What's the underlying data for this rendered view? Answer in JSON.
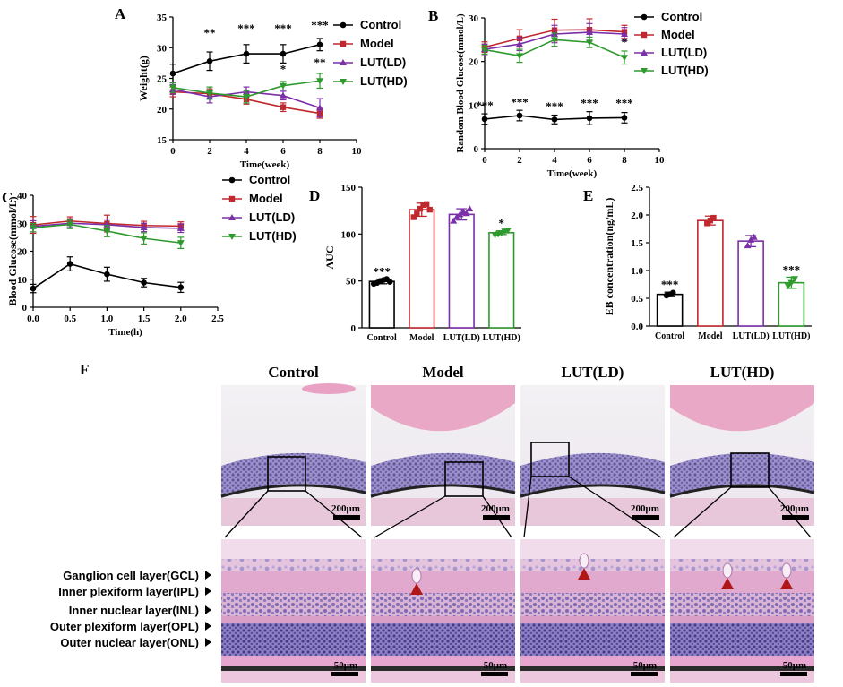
{
  "colors": {
    "control": "#000000",
    "model": "#c0282d",
    "lut_ld": "#7b2fa8",
    "lut_hd": "#2e9a2e"
  },
  "chart_data": [
    {
      "id": "A",
      "panel_label": "A",
      "type": "line",
      "xlabel": "Time(week)",
      "ylabel": "Weight(g)",
      "xlim": [
        0,
        10
      ],
      "ylim": [
        15,
        35
      ],
      "xticks": [
        "0",
        "2",
        "4",
        "6",
        "8",
        "10"
      ],
      "yticks": [
        "15",
        "20",
        "25",
        "30",
        "35"
      ],
      "x": [
        0,
        2,
        4,
        6,
        8
      ],
      "series": [
        {
          "name": "Control",
          "values": [
            25.8,
            27.8,
            29.0,
            29.0,
            30.5
          ],
          "errors": [
            1.5,
            1.5,
            1.5,
            1.5,
            1.0
          ]
        },
        {
          "name": "Model",
          "values": [
            22.8,
            22.5,
            21.6,
            20.3,
            19.3
          ],
          "errors": [
            0.8,
            0.8,
            0.8,
            0.7,
            0.8
          ]
        },
        {
          "name": "LUT(LD)",
          "values": [
            23.2,
            22.0,
            22.8,
            22.2,
            20.2
          ],
          "errors": [
            0.8,
            1.0,
            0.8,
            0.7,
            1.5
          ]
        },
        {
          "name": "LUT(HD)",
          "values": [
            23.5,
            22.6,
            22.0,
            23.8,
            24.6
          ],
          "errors": [
            0.8,
            1.0,
            1.0,
            0.7,
            1.2
          ]
        }
      ],
      "annotations": [
        {
          "x": 2,
          "y": 31.8,
          "text": "**"
        },
        {
          "x": 4,
          "y": 32.5,
          "text": "***"
        },
        {
          "x": 6,
          "y": 32.5,
          "text": "***"
        },
        {
          "x": 8,
          "y": 33.0,
          "text": "***"
        },
        {
          "x": 6,
          "y": 25.9,
          "text": "*"
        },
        {
          "x": 8,
          "y": 27.0,
          "text": "**"
        }
      ],
      "legend": [
        "Control",
        "Model",
        "LUT(LD)",
        "LUT(HD)"
      ]
    },
    {
      "id": "B",
      "panel_label": "B",
      "type": "line",
      "xlabel": "Time(week)",
      "ylabel": "Random Blood Glucose(mmol/L)",
      "xlim": [
        0,
        10
      ],
      "ylim": [
        0,
        30
      ],
      "xticks": [
        "0",
        "2",
        "4",
        "6",
        "8",
        "10"
      ],
      "yticks": [
        "0",
        "10",
        "20",
        "30"
      ],
      "x": [
        0,
        2,
        4,
        6,
        8
      ],
      "series": [
        {
          "name": "Control",
          "values": [
            6.8,
            7.6,
            6.7,
            7.0,
            7.1
          ],
          "errors": [
            1.2,
            1.2,
            1.0,
            1.5,
            1.2
          ]
        },
        {
          "name": "Model",
          "values": [
            23.3,
            25.3,
            27.2,
            27.3,
            26.8
          ],
          "errors": [
            1.2,
            2.0,
            2.5,
            2.5,
            1.5
          ]
        },
        {
          "name": "LUT(LD)",
          "values": [
            22.8,
            24.0,
            26.3,
            26.7,
            26.3
          ],
          "errors": [
            1.2,
            1.5,
            2.0,
            2.0,
            1.5
          ]
        },
        {
          "name": "LUT(HD)",
          "values": [
            22.7,
            21.3,
            25.0,
            24.4,
            20.9
          ],
          "errors": [
            1.0,
            1.5,
            1.5,
            1.2,
            1.5
          ]
        }
      ],
      "annotations": [
        {
          "x": 0,
          "y": 9.0,
          "text": "***"
        },
        {
          "x": 2,
          "y": 9.8,
          "text": "***"
        },
        {
          "x": 4,
          "y": 8.8,
          "text": "***"
        },
        {
          "x": 6,
          "y": 9.6,
          "text": "***"
        },
        {
          "x": 8,
          "y": 9.6,
          "text": "***"
        },
        {
          "x": 8,
          "y": 23.5,
          "text": "*"
        }
      ],
      "legend": [
        "Control",
        "Model",
        "LUT(LD)",
        "LUT(HD)"
      ]
    },
    {
      "id": "C",
      "panel_label": "C",
      "type": "line",
      "xlabel": "Time(h)",
      "ylabel": "Blood Glucose(mmol/L)",
      "xlim": [
        0,
        2.5
      ],
      "ylim": [
        0,
        40
      ],
      "xticks": [
        "0.0",
        "0.5",
        "1.0",
        "1.5",
        "2.0",
        "2.5"
      ],
      "yticks": [
        "0",
        "10",
        "20",
        "30",
        "40"
      ],
      "x": [
        0,
        0.5,
        1.0,
        1.5,
        2.0
      ],
      "series": [
        {
          "name": "Control",
          "values": [
            6.7,
            15.5,
            11.8,
            8.8,
            7.1
          ],
          "errors": [
            1.5,
            2.5,
            2.5,
            1.5,
            1.8
          ]
        },
        {
          "name": "Model",
          "values": [
            29.4,
            30.8,
            29.9,
            29.2,
            29.0
          ],
          "errors": [
            3.0,
            1.5,
            3.0,
            1.5,
            1.5
          ]
        },
        {
          "name": "LUT(LD)",
          "values": [
            28.9,
            30.0,
            29.5,
            28.5,
            28.2
          ],
          "errors": [
            2.0,
            1.5,
            2.0,
            1.5,
            1.5
          ]
        },
        {
          "name": "LUT(HD)",
          "values": [
            28.4,
            29.6,
            27.2,
            24.6,
            23.0
          ],
          "errors": [
            1.5,
            1.5,
            2.0,
            2.0,
            2.0
          ]
        }
      ],
      "legend": [
        "Control",
        "Model",
        "LUT(LD)",
        "LUT(HD)"
      ]
    },
    {
      "id": "D",
      "panel_label": "D",
      "type": "bar",
      "ylabel": "AUC",
      "ylim": [
        0,
        150
      ],
      "yticks": [
        "0",
        "50",
        "100",
        "150"
      ],
      "categories": [
        "Control",
        "Model",
        "LUT(LD)",
        "LUT(HD)"
      ],
      "values": [
        49.5,
        126,
        121,
        101.5
      ],
      "errors": [
        2.5,
        7,
        6,
        2
      ],
      "points": [
        [
          47,
          48,
          50,
          51,
          52,
          49
        ],
        [
          118,
          122,
          127,
          131,
          132,
          126
        ],
        [
          114,
          118,
          121,
          124,
          122,
          127
        ],
        [
          99,
          100,
          101,
          103,
          104
        ]
      ],
      "annotations": [
        "***",
        "",
        "",
        "*"
      ]
    },
    {
      "id": "E",
      "panel_label": "E",
      "type": "bar",
      "ylabel": "EB concentration(ng/mL)",
      "ylim": [
        0,
        2.5
      ],
      "yticks": [
        "0.0",
        "0.5",
        "1.0",
        "1.5",
        "2.0",
        "2.5"
      ],
      "categories": [
        "Control",
        "Model",
        "LUT(LD)",
        "LUT(HD)"
      ],
      "values": [
        0.57,
        1.9,
        1.53,
        0.78
      ],
      "errors": [
        0.04,
        0.08,
        0.1,
        0.1
      ],
      "points": [
        [
          0.55,
          0.57,
          0.6
        ],
        [
          1.85,
          1.9,
          1.95
        ],
        [
          1.45,
          1.55,
          1.6
        ],
        [
          0.72,
          0.78,
          0.85
        ]
      ],
      "annotations": [
        "***",
        "",
        "",
        "***"
      ]
    }
  ],
  "histology": {
    "panel_label": "F",
    "columns": [
      "Control",
      "Model",
      "LUT(LD)",
      "LUT(HD)"
    ],
    "scale_top": "200μm",
    "scale_bottom": "50μm",
    "layers": [
      "Ganglion cell layer(GCL)",
      "Inner plexiform layer(IPL)",
      "Inner nuclear layer(INL)",
      "Outer plexiform layer(OPL)",
      "Outer nuclear layer(ONL)"
    ]
  }
}
